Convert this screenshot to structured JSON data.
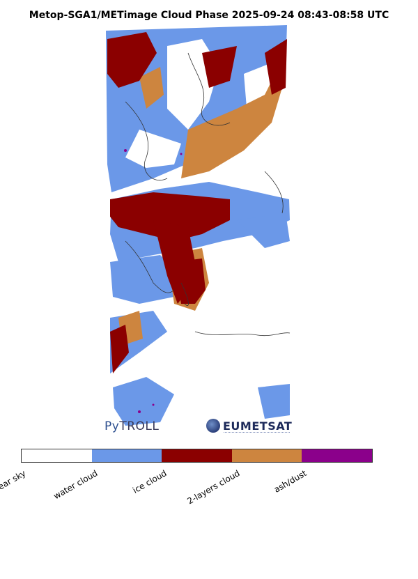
{
  "title": "Metop-SGA1/METimage Cloud Phase 2025-09-24 08:43-08:58 UTC",
  "logos": {
    "pytroll": {
      "prefix": "Py",
      "rest": "TROLL"
    },
    "eumetsat": "EUMETSAT"
  },
  "legend": {
    "categories": [
      {
        "label": "clear sky",
        "color": "#ffffff"
      },
      {
        "label": "water cloud",
        "color": "#6b98e8"
      },
      {
        "label": "ice cloud",
        "color": "#8b0000"
      },
      {
        "label": "2-layers cloud",
        "color": "#cd853f"
      },
      {
        "label": "ash/dust",
        "color": "#8b008b"
      }
    ]
  }
}
